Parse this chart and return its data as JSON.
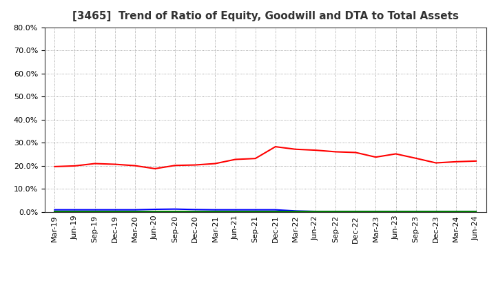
{
  "title": "[3465]  Trend of Ratio of Equity, Goodwill and DTA to Total Assets",
  "x_labels": [
    "Mar-19",
    "Jun-19",
    "Sep-19",
    "Dec-19",
    "Mar-20",
    "Jun-20",
    "Sep-20",
    "Dec-20",
    "Mar-21",
    "Jun-21",
    "Sep-21",
    "Dec-21",
    "Mar-22",
    "Jun-22",
    "Sep-22",
    "Dec-22",
    "Mar-23",
    "Jun-23",
    "Sep-23",
    "Dec-23",
    "Mar-24",
    "Jun-24"
  ],
  "equity": [
    0.197,
    0.2,
    0.21,
    0.207,
    0.201,
    0.188,
    0.202,
    0.204,
    0.21,
    0.228,
    0.232,
    0.283,
    0.272,
    0.268,
    0.261,
    0.258,
    0.238,
    0.252,
    0.233,
    0.213,
    0.218,
    0.221
  ],
  "goodwill": [
    0.01,
    0.01,
    0.01,
    0.01,
    0.01,
    0.012,
    0.013,
    0.011,
    0.01,
    0.01,
    0.01,
    0.01,
    0.005,
    0.003,
    0.003,
    0.003,
    0.003,
    0.003,
    0.003,
    0.003,
    0.003,
    0.003
  ],
  "dta": [
    0.003,
    0.003,
    0.003,
    0.003,
    0.003,
    0.003,
    0.003,
    0.003,
    0.003,
    0.003,
    0.003,
    0.003,
    0.003,
    0.003,
    0.003,
    0.003,
    0.003,
    0.003,
    0.003,
    0.003,
    0.003,
    0.003
  ],
  "equity_color": "#ff0000",
  "goodwill_color": "#0000ff",
  "dta_color": "#008000",
  "ylim": [
    0.0,
    0.8
  ],
  "yticks": [
    0.0,
    0.1,
    0.2,
    0.3,
    0.4,
    0.5,
    0.6,
    0.7,
    0.8
  ],
  "background_color": "#ffffff",
  "grid_color": "#888888",
  "title_fontsize": 11,
  "tick_fontsize": 8,
  "legend_fontsize": 9
}
